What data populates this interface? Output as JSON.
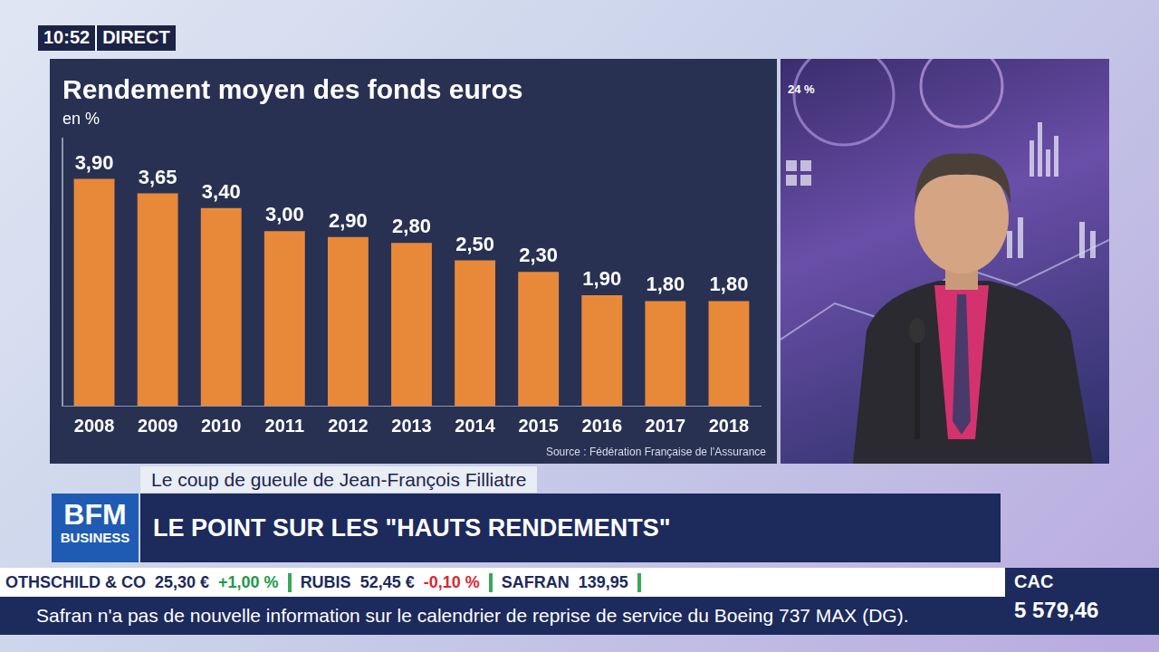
{
  "chart_data": {
    "type": "bar",
    "title": "Rendement moyen des fonds euros",
    "subtitle": "en %",
    "source": "Source : Fédération Française de l'Assurance",
    "categories": [
      "2008",
      "2009",
      "2010",
      "2011",
      "2012",
      "2013",
      "2014",
      "2015",
      "2016",
      "2017",
      "2018"
    ],
    "values": [
      3.9,
      3.65,
      3.4,
      3.0,
      2.9,
      2.8,
      2.5,
      2.3,
      1.9,
      1.8,
      1.8
    ],
    "value_labels": [
      "3,90",
      "3,65",
      "3,40",
      "3,00",
      "2,90",
      "2,80",
      "2,50",
      "2,30",
      "1,90",
      "1,80",
      "1,80"
    ],
    "color": "#e8893a",
    "ylim": [
      0,
      4.6
    ],
    "grid": false,
    "data_labels": true,
    "tick_labels": "x"
  },
  "screen": {
    "clock": "10:52",
    "live": "DIRECT",
    "studio_screen": "24 %",
    "show": "Le coup de gueule de Jean-François Filliatre",
    "logo": [
      "BFM",
      "BUSINESS"
    ],
    "headline": "LE POINT SUR LES \"HAUTS RENDEMENTS\"",
    "ticker": [
      {
        "name": "OTHSCHILD & CO",
        "price": "25,30 €",
        "change": "+1,00 %"
      },
      {
        "name": "RUBIS",
        "price": "52,45 €",
        "change": "-0,10 %"
      },
      {
        "name": "SAFRAN",
        "price": "139,95",
        "change": ""
      }
    ],
    "news": "Safran n'a pas de nouvelle information sur le calendrier de reprise de service du Boeing 737 MAX (DG).",
    "index": {
      "name": "CAC",
      "value": "5 579,46"
    }
  }
}
